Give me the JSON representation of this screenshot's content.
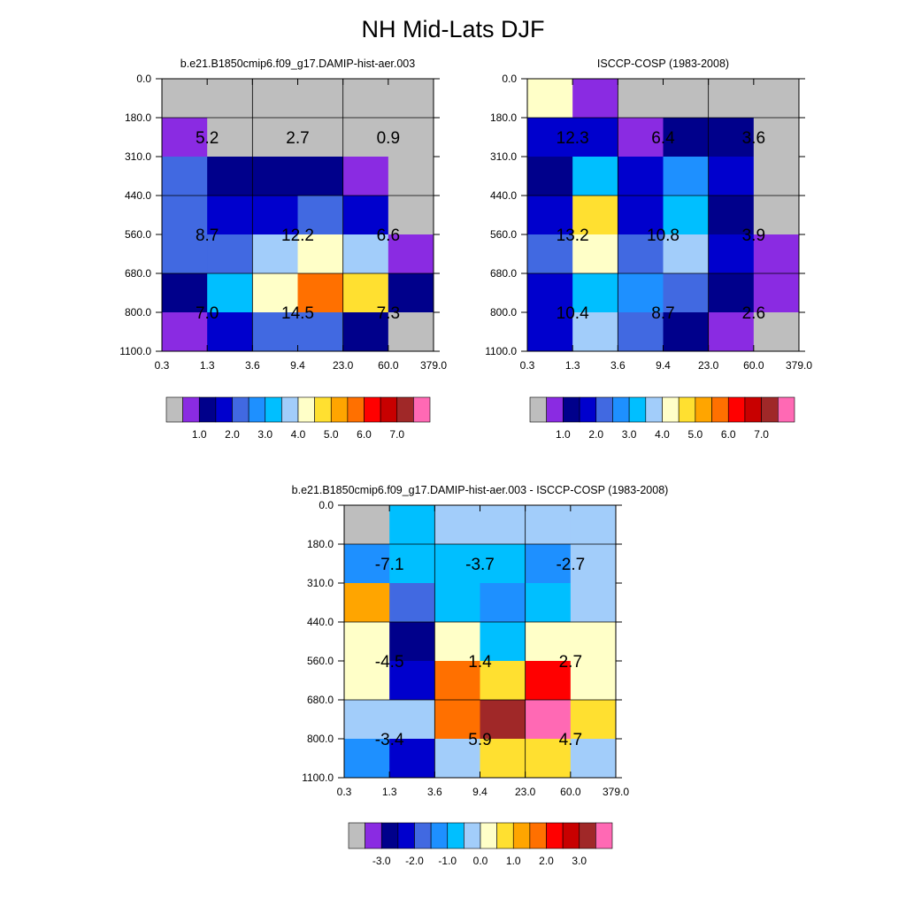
{
  "title": "NH Mid-Lats DJF",
  "chart_data": [
    {
      "type": "heatmap",
      "title": "b.e21.B1850cmip6.f09_g17.DAMIP-hist-aer.003",
      "x_tick_labels": [
        "0.3",
        "1.3",
        "3.6",
        "9.4",
        "23.0",
        "60.0",
        "379.0"
      ],
      "y_tick_labels": [
        "0.0",
        "180.0",
        "310.0",
        "440.0",
        "560.0",
        "680.0",
        "800.0",
        "1100.0"
      ],
      "bin_colors": [
        [
          "#bebebe",
          "#bebebe",
          "#bebebe",
          "#bebebe",
          "#bebebe",
          "#bebebe"
        ],
        [
          "#8a2be2",
          "#bebebe",
          "#bebebe",
          "#bebebe",
          "#bebebe",
          "#bebebe"
        ],
        [
          "#4169e1",
          "#00008b",
          "#00008b",
          "#00008b",
          "#8a2be2",
          "#bebebe"
        ],
        [
          "#4169e1",
          "#0000cd",
          "#0000cd",
          "#4169e1",
          "#0000cd",
          "#bebebe"
        ],
        [
          "#4169e1",
          "#4169e1",
          "#a2cdfa",
          "#ffffc8",
          "#a2cdfa",
          "#8a2be2"
        ],
        [
          "#00008b",
          "#00bfff",
          "#ffffc8",
          "#ff7000",
          "#ffe030",
          "#00008b"
        ],
        [
          "#8a2be2",
          "#0000cd",
          "#4169e1",
          "#4169e1",
          "#00008b",
          "#bebebe"
        ]
      ],
      "block_values": [
        [
          "5.2",
          "2.7",
          "0.9"
        ],
        [
          "8.7",
          "12.2",
          "6.6"
        ],
        [
          "7.0",
          "14.5",
          "7.3"
        ]
      ],
      "colorbar": {
        "colors": [
          "#bebebe",
          "#8a2be2",
          "#00008b",
          "#0000cd",
          "#4169e1",
          "#1e90ff",
          "#00bfff",
          "#a2cdfa",
          "#ffffc8",
          "#ffe030",
          "#ffa500",
          "#ff7000",
          "#ff0000",
          "#c80000",
          "#a02828",
          "#ff69b4"
        ],
        "labels": [
          "1.0",
          "2.0",
          "3.0",
          "4.0",
          "5.0",
          "6.0",
          "7.0"
        ]
      }
    },
    {
      "type": "heatmap",
      "title": "ISCCP-COSP (1983-2008)",
      "x_tick_labels": [
        "0.3",
        "1.3",
        "3.6",
        "9.4",
        "23.0",
        "60.0",
        "379.0"
      ],
      "y_tick_labels": [
        "0.0",
        "180.0",
        "310.0",
        "440.0",
        "560.0",
        "680.0",
        "800.0",
        "1100.0"
      ],
      "bin_colors": [
        [
          "#ffffc8",
          "#8a2be2",
          "#bebebe",
          "#bebebe",
          "#bebebe",
          "#bebebe"
        ],
        [
          "#0000cd",
          "#0000cd",
          "#8a2be2",
          "#00008b",
          "#00008b",
          "#bebebe"
        ],
        [
          "#00008b",
          "#00bfff",
          "#0000cd",
          "#1e90ff",
          "#0000cd",
          "#bebebe"
        ],
        [
          "#0000cd",
          "#ffe030",
          "#0000cd",
          "#00bfff",
          "#00008b",
          "#bebebe"
        ],
        [
          "#4169e1",
          "#ffffc8",
          "#4169e1",
          "#a2cdfa",
          "#0000cd",
          "#8a2be2"
        ],
        [
          "#0000cd",
          "#00bfff",
          "#1e90ff",
          "#4169e1",
          "#00008b",
          "#8a2be2"
        ],
        [
          "#0000cd",
          "#a2cdfa",
          "#4169e1",
          "#00008b",
          "#8a2be2",
          "#bebebe"
        ]
      ],
      "block_values": [
        [
          "12.3",
          "6.4",
          "3.6"
        ],
        [
          "13.2",
          "10.8",
          "3.9"
        ],
        [
          "10.4",
          "8.7",
          "2.6"
        ]
      ],
      "colorbar": {
        "colors": [
          "#bebebe",
          "#8a2be2",
          "#00008b",
          "#0000cd",
          "#4169e1",
          "#1e90ff",
          "#00bfff",
          "#a2cdfa",
          "#ffffc8",
          "#ffe030",
          "#ffa500",
          "#ff7000",
          "#ff0000",
          "#c80000",
          "#a02828",
          "#ff69b4"
        ],
        "labels": [
          "1.0",
          "2.0",
          "3.0",
          "4.0",
          "5.0",
          "6.0",
          "7.0"
        ]
      }
    },
    {
      "type": "heatmap",
      "title": "b.e21.B1850cmip6.f09_g17.DAMIP-hist-aer.003 - ISCCP-COSP (1983-2008)",
      "x_tick_labels": [
        "0.3",
        "1.3",
        "3.6",
        "9.4",
        "23.0",
        "60.0",
        "379.0"
      ],
      "y_tick_labels": [
        "0.0",
        "180.0",
        "310.0",
        "440.0",
        "560.0",
        "680.0",
        "800.0",
        "1100.0"
      ],
      "bin_colors": [
        [
          "#bebebe",
          "#00bfff",
          "#a2cdfa",
          "#a2cdfa",
          "#a2cdfa",
          "#a2cdfa"
        ],
        [
          "#1e90ff",
          "#00bfff",
          "#00bfff",
          "#00bfff",
          "#1e90ff",
          "#a2cdfa"
        ],
        [
          "#ffa500",
          "#4169e1",
          "#00bfff",
          "#1e90ff",
          "#00bfff",
          "#a2cdfa"
        ],
        [
          "#ffffc8",
          "#00008b",
          "#ffffc8",
          "#00bfff",
          "#ffffc8",
          "#ffffc8"
        ],
        [
          "#ffffc8",
          "#0000cd",
          "#ff7000",
          "#ffe030",
          "#ff0000",
          "#ffffc8"
        ],
        [
          "#a2cdfa",
          "#a2cdfa",
          "#ff7000",
          "#a02828",
          "#ff69b4",
          "#ffe030"
        ],
        [
          "#1e90ff",
          "#0000cd",
          "#a2cdfa",
          "#ffe030",
          "#ffe030",
          "#a2cdfa"
        ]
      ],
      "block_values": [
        [
          "-7.1",
          "-3.7",
          "-2.7"
        ],
        [
          "-4.5",
          "1.4",
          "2.7"
        ],
        [
          "-3.4",
          "5.9",
          "4.7"
        ]
      ],
      "colorbar": {
        "colors": [
          "#bebebe",
          "#8a2be2",
          "#00008b",
          "#0000cd",
          "#4169e1",
          "#1e90ff",
          "#00bfff",
          "#a2cdfa",
          "#ffffc8",
          "#ffe030",
          "#ffa500",
          "#ff7000",
          "#ff0000",
          "#c80000",
          "#a02828",
          "#ff69b4"
        ],
        "labels": [
          "-3.0",
          "-2.0",
          "-1.0",
          "0.0",
          "1.0",
          "2.0",
          "3.0"
        ]
      }
    }
  ]
}
